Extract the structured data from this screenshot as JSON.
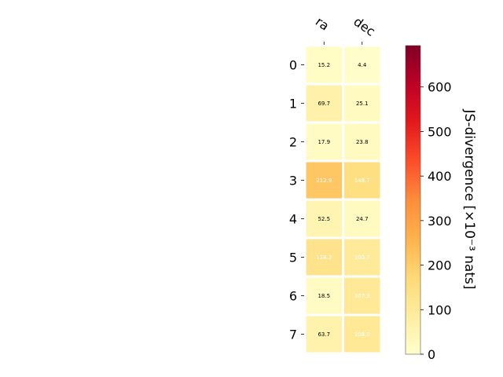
{
  "chart_data": {
    "type": "heatmap",
    "columns": [
      "ra",
      "dec"
    ],
    "rows": [
      "0",
      "1",
      "2",
      "3",
      "4",
      "5",
      "6",
      "7"
    ],
    "values": [
      [
        15.2,
        4.4
      ],
      [
        69.7,
        25.1
      ],
      [
        17.9,
        23.8
      ],
      [
        212.9,
        148.7
      ],
      [
        52.5,
        24.7
      ],
      [
        128.2,
        100.7
      ],
      [
        18.5,
        107.9
      ],
      [
        63.7,
        108.0
      ]
    ],
    "colorbar": {
      "label": "JS-divergence [×10⁻³ nats]",
      "range": [
        0,
        693
      ],
      "ticks": [
        0,
        100,
        200,
        300,
        400,
        500,
        600
      ],
      "colormap": "YlOrRd",
      "colors": [
        "#ffffcc",
        "#ffeda0",
        "#fed976",
        "#feb24c",
        "#fd8d3c",
        "#fc4e2a",
        "#e31a1c",
        "#bd0026",
        "#800026"
      ]
    }
  }
}
